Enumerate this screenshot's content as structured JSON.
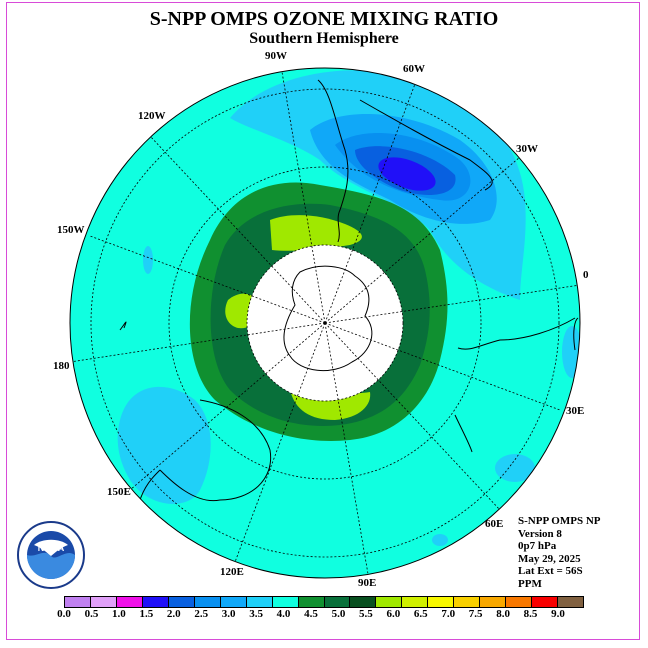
{
  "title": "S-NPP OMPS OZONE MIXING RATIO",
  "subtitle": "Southern Hemisphere",
  "longitude_labels": [
    "90W",
    "60W",
    "120W",
    "30W",
    "150W",
    "0",
    "180",
    "30E",
    "150E",
    "60E",
    "120E",
    "90E"
  ],
  "info": {
    "line1": "S-NPP OMPS NP",
    "line2": "Version 8",
    "line3": "0p7 hPa",
    "line4": "May 29, 2025",
    "line5": "Lat Ext = 56S",
    "line6": "PPM"
  },
  "colorbar": {
    "colors": [
      "#c080f0",
      "#e0a0f8",
      "#f010e8",
      "#2010f8",
      "#0860e0",
      "#0890f0",
      "#10a8f8",
      "#20d0f8",
      "#10ffe0",
      "#109030",
      "#08703a",
      "#085020",
      "#a0e800",
      "#d0f000",
      "#f8f800",
      "#f8d000",
      "#f8a800",
      "#f87800",
      "#f80000",
      "#806040"
    ],
    "ticks": [
      "0.0",
      "0.5",
      "1.0",
      "1.5",
      "2.0",
      "2.5",
      "3.0",
      "3.5",
      "4.0",
      "4.5",
      "5.0",
      "5.5",
      "6.0",
      "6.5",
      "7.0",
      "7.5",
      "8.0",
      "8.5",
      "9.0"
    ]
  },
  "map_colors": {
    "background": "#10ffe0",
    "light_blue": "#20d0f8",
    "medium_blue": "#10a8f8",
    "blue": "#0890f0",
    "dark_blue": "#0860e0",
    "deep_blue": "#2010f8",
    "green": "#109030",
    "dark_green": "#08703a",
    "lime": "#a0e800",
    "pole_mask": "#ffffff"
  },
  "logo": {
    "text": "NOAA"
  }
}
